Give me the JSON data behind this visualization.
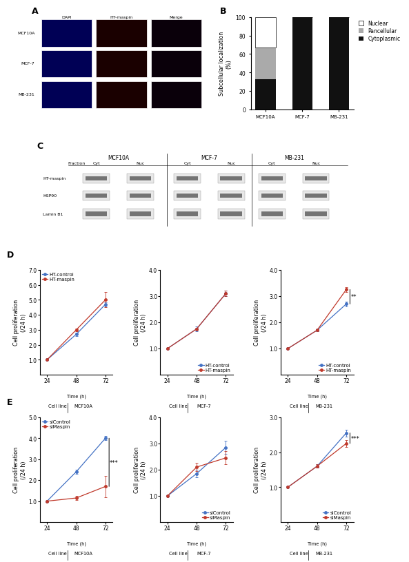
{
  "panel_B": {
    "categories": [
      "MCF10A",
      "MCF-7",
      "MB-231"
    ],
    "nuclear": [
      33,
      0,
      0
    ],
    "pancellular": [
      34,
      0,
      0
    ],
    "cytoplasmic": [
      33,
      100,
      100
    ],
    "colors": {
      "nuclear": "#ffffff",
      "pancellular": "#aaaaaa",
      "cytoplasmic": "#111111"
    },
    "ylabel": "Subcellular localization\n(%)",
    "ylim": [
      0,
      100
    ],
    "yticks": [
      0,
      20,
      40,
      60,
      80,
      100
    ]
  },
  "panel_D": {
    "MCF10A": {
      "time": [
        24,
        48,
        72
      ],
      "control": [
        1.0,
        2.7,
        4.7
      ],
      "maspin": [
        1.0,
        3.0,
        5.0
      ],
      "control_err": [
        0.0,
        0.1,
        0.15
      ],
      "maspin_err": [
        0.0,
        0.1,
        0.5
      ],
      "ylim": [
        0,
        7.0
      ],
      "yticks": [
        1.0,
        2.0,
        3.0,
        4.0,
        5.0,
        6.0,
        7.0
      ]
    },
    "MCF-7": {
      "time": [
        24,
        48,
        72
      ],
      "control": [
        1.0,
        1.75,
        3.1
      ],
      "maspin": [
        1.0,
        1.75,
        3.1
      ],
      "control_err": [
        0.0,
        0.1,
        0.1
      ],
      "maspin_err": [
        0.0,
        0.05,
        0.1
      ],
      "ylim": [
        0,
        4.0
      ],
      "yticks": [
        1.0,
        2.0,
        3.0,
        4.0
      ]
    },
    "MB-231": {
      "time": [
        24,
        48,
        72
      ],
      "control": [
        1.0,
        1.7,
        2.7
      ],
      "maspin": [
        1.0,
        1.7,
        3.25
      ],
      "control_err": [
        0.0,
        0.05,
        0.1
      ],
      "maspin_err": [
        0.0,
        0.05,
        0.1
      ],
      "ylim": [
        0,
        4.0
      ],
      "yticks": [
        1.0,
        2.0,
        3.0,
        4.0
      ],
      "sig": "**"
    }
  },
  "panel_E": {
    "MCF10A": {
      "time": [
        24,
        48,
        72
      ],
      "control": [
        1.0,
        2.4,
        4.0
      ],
      "maspin": [
        1.0,
        1.15,
        1.7
      ],
      "control_err": [
        0.0,
        0.1,
        0.1
      ],
      "maspin_err": [
        0.0,
        0.1,
        0.5
      ],
      "ylim": [
        0,
        5.0
      ],
      "yticks": [
        1.0,
        2.0,
        3.0,
        4.0,
        5.0
      ],
      "sig": "***"
    },
    "MCF-7": {
      "time": [
        24,
        48,
        72
      ],
      "control": [
        1.0,
        1.85,
        2.85
      ],
      "maspin": [
        1.0,
        2.1,
        2.45
      ],
      "control_err": [
        0.0,
        0.15,
        0.25
      ],
      "maspin_err": [
        0.0,
        0.15,
        0.25
      ],
      "ylim": [
        0,
        4.0
      ],
      "yticks": [
        1.0,
        2.0,
        3.0,
        4.0
      ]
    },
    "MB-231": {
      "time": [
        24,
        48,
        72
      ],
      "control": [
        1.0,
        1.6,
        2.55
      ],
      "maspin": [
        1.0,
        1.6,
        2.25
      ],
      "control_err": [
        0.0,
        0.05,
        0.1
      ],
      "maspin_err": [
        0.0,
        0.05,
        0.1
      ],
      "ylim": [
        0,
        3.0
      ],
      "yticks": [
        1.0,
        2.0,
        3.0
      ],
      "sig": "***"
    }
  },
  "blue_color": "#4472c4",
  "red_color": "#c0392b",
  "panel_labels_fontsize": 9,
  "axis_fontsize": 5.8,
  "tick_fontsize": 5.5,
  "legend_fontsize": 5.5,
  "cell_lines": [
    "MCF10A",
    "MCF-7",
    "MB-231"
  ]
}
